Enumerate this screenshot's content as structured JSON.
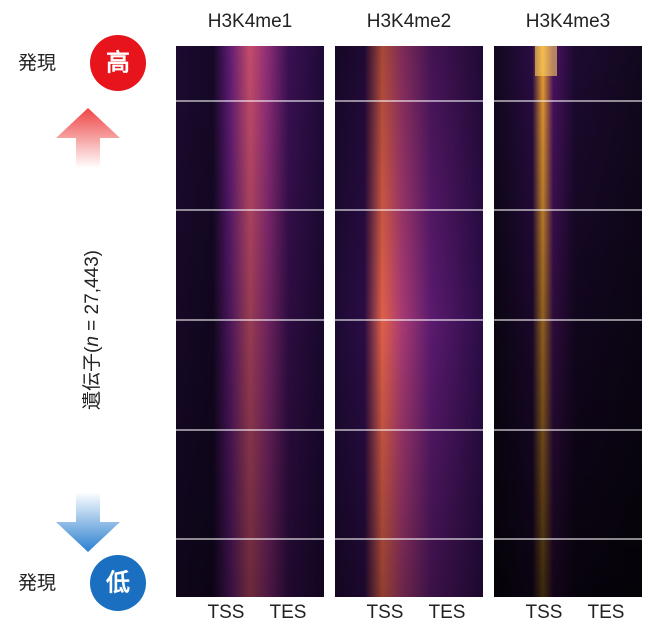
{
  "panels": [
    {
      "title": "H3K4me1",
      "x_labels": [
        "TSS",
        "TES"
      ]
    },
    {
      "title": "H3K4me2",
      "x_labels": [
        "TSS",
        "TES"
      ]
    },
    {
      "title": "H3K4me3",
      "x_labels": [
        "TSS",
        "TES"
      ]
    }
  ],
  "top_label": {
    "text": "発現",
    "badge": "高"
  },
  "bottom_label": {
    "text": "発現",
    "badge": "低"
  },
  "y_label": {
    "prefix": "遺伝子(",
    "italic": "n",
    "suffix": " = 27,443)"
  }
}
